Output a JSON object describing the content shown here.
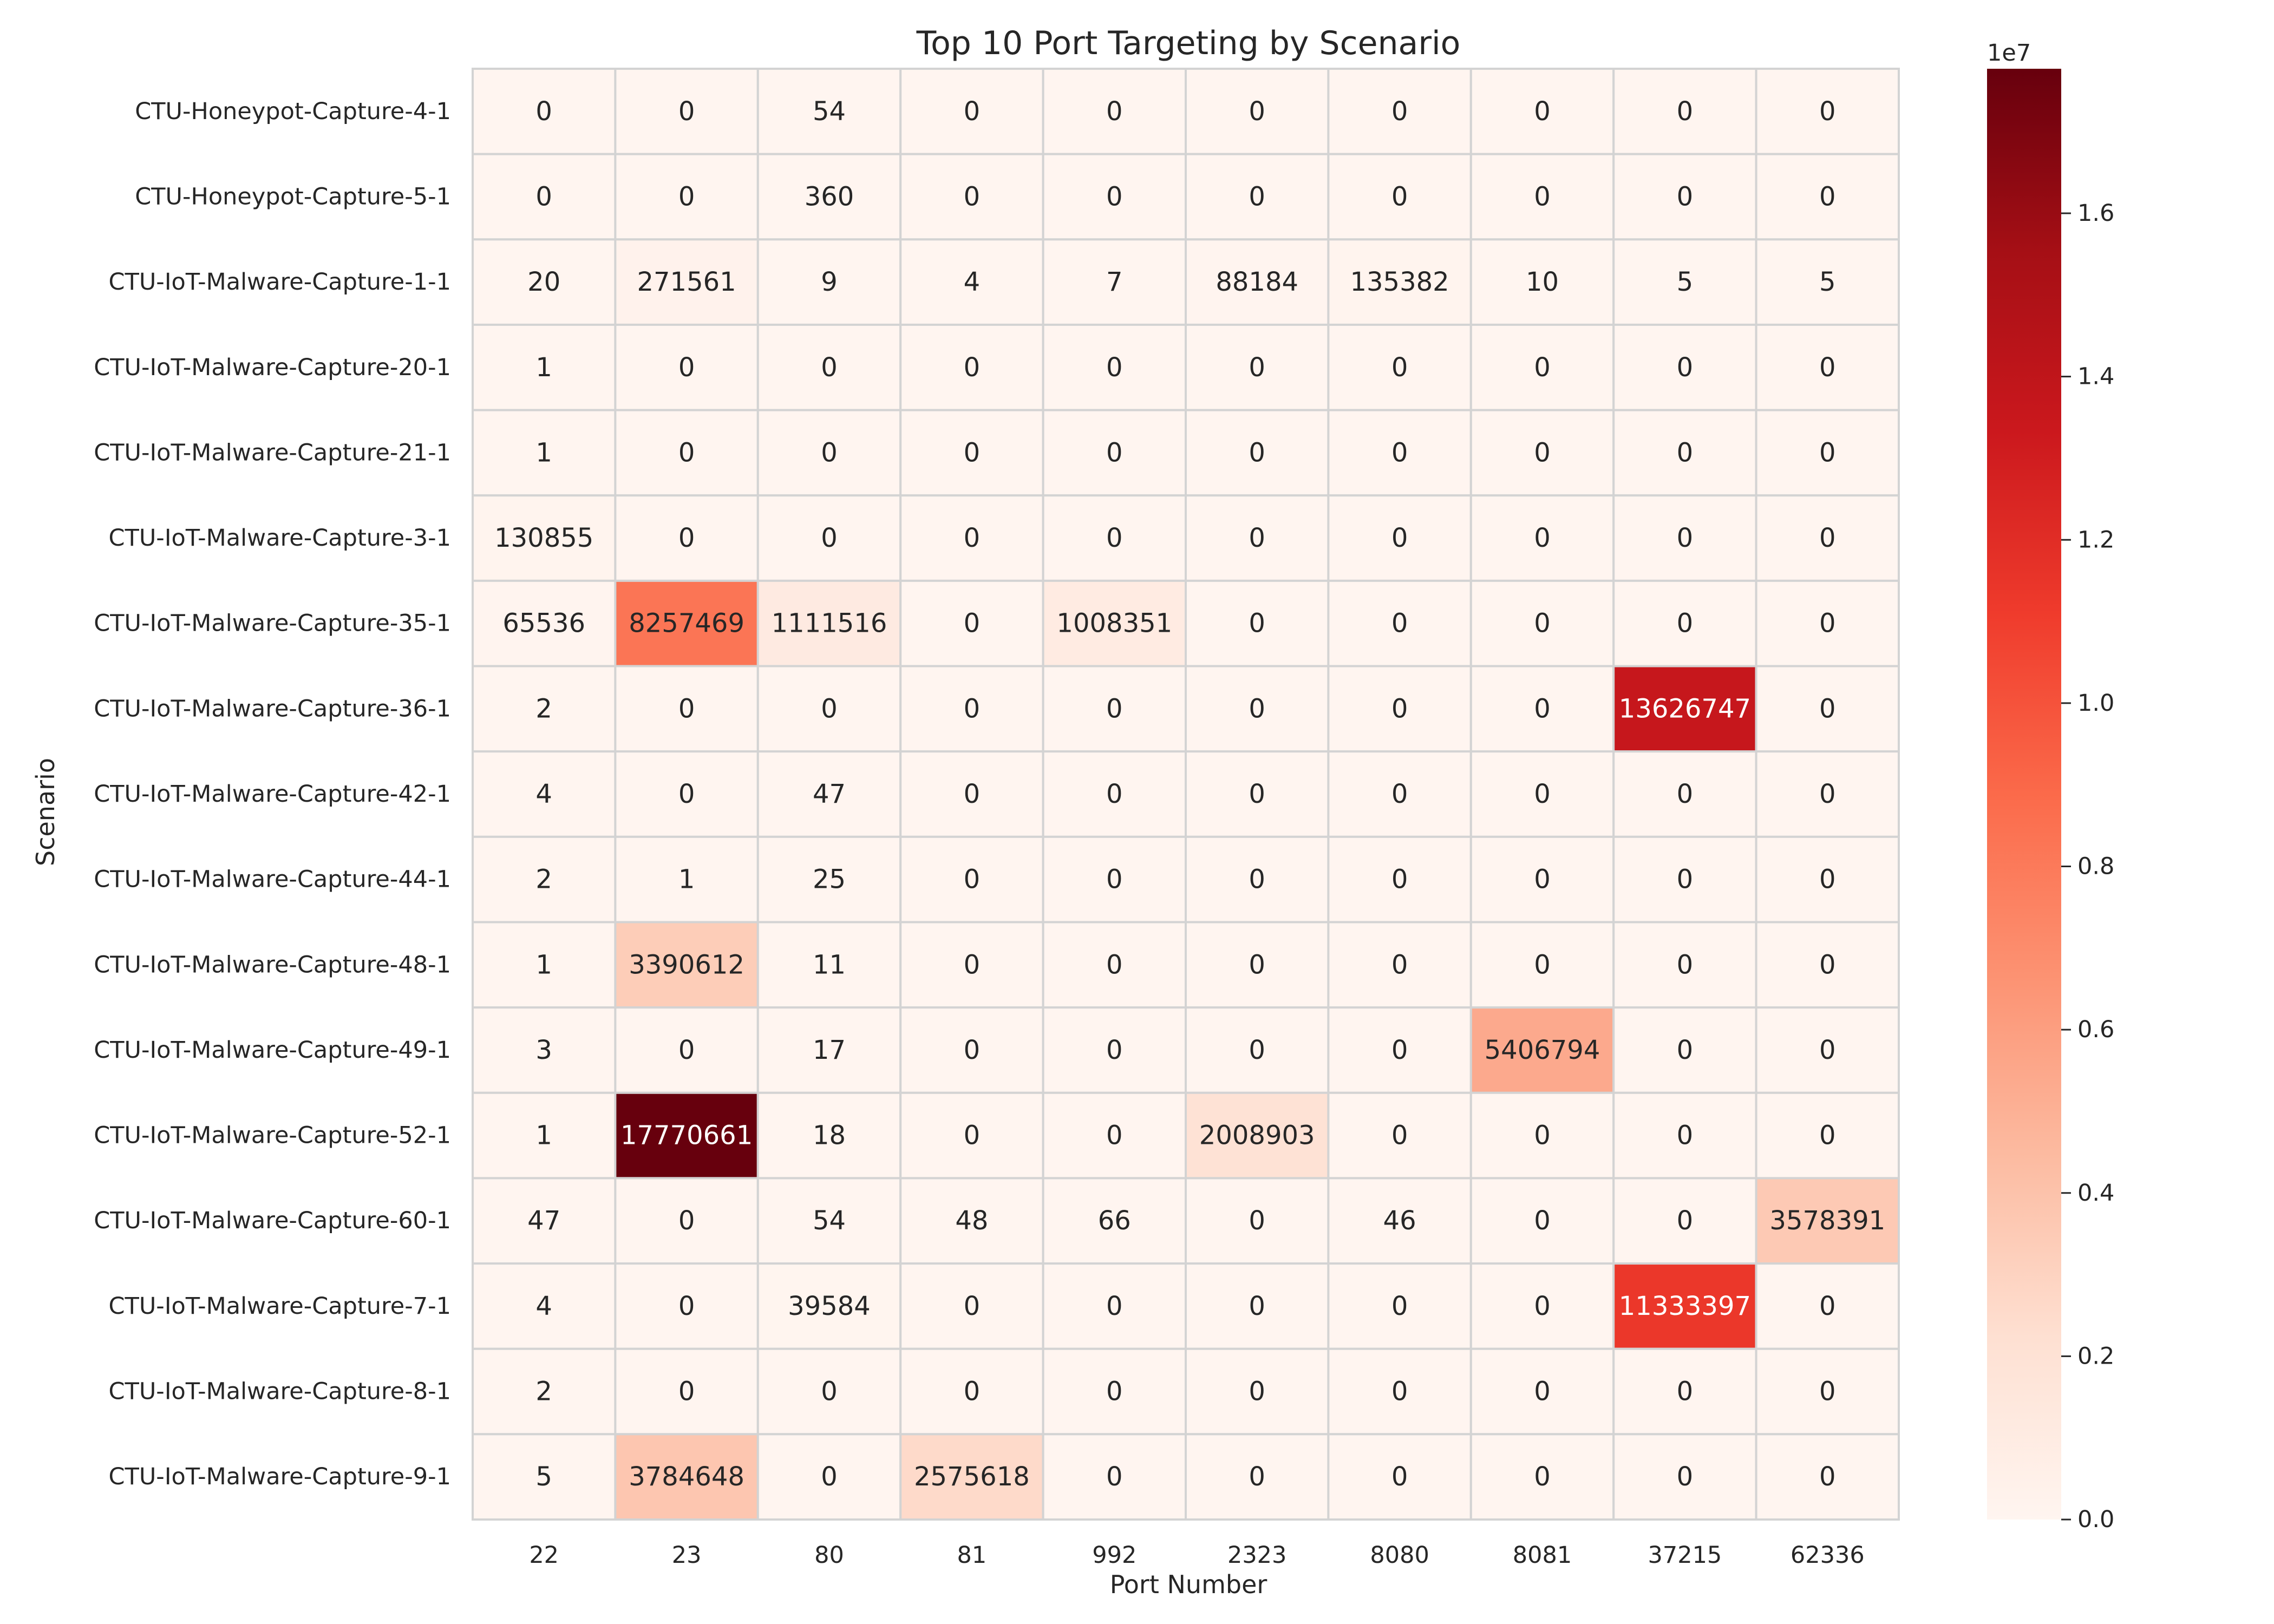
{
  "chart_data": {
    "type": "heatmap",
    "title": "Top 10 Port Targeting by Scenario",
    "xlabel": "Port Number",
    "ylabel": "Scenario",
    "x_categories": [
      "22",
      "23",
      "80",
      "81",
      "992",
      "2323",
      "8080",
      "8081",
      "37215",
      "62336"
    ],
    "y_categories": [
      "CTU-Honeypot-Capture-4-1",
      "CTU-Honeypot-Capture-5-1",
      "CTU-IoT-Malware-Capture-1-1",
      "CTU-IoT-Malware-Capture-20-1",
      "CTU-IoT-Malware-Capture-21-1",
      "CTU-IoT-Malware-Capture-3-1",
      "CTU-IoT-Malware-Capture-35-1",
      "CTU-IoT-Malware-Capture-36-1",
      "CTU-IoT-Malware-Capture-42-1",
      "CTU-IoT-Malware-Capture-44-1",
      "CTU-IoT-Malware-Capture-48-1",
      "CTU-IoT-Malware-Capture-49-1",
      "CTU-IoT-Malware-Capture-52-1",
      "CTU-IoT-Malware-Capture-60-1",
      "CTU-IoT-Malware-Capture-7-1",
      "CTU-IoT-Malware-Capture-8-1",
      "CTU-IoT-Malware-Capture-9-1"
    ],
    "values": [
      [
        0,
        0,
        54,
        0,
        0,
        0,
        0,
        0,
        0,
        0
      ],
      [
        0,
        0,
        360,
        0,
        0,
        0,
        0,
        0,
        0,
        0
      ],
      [
        20,
        271561,
        9,
        4,
        7,
        88184,
        135382,
        10,
        5,
        5
      ],
      [
        1,
        0,
        0,
        0,
        0,
        0,
        0,
        0,
        0,
        0
      ],
      [
        1,
        0,
        0,
        0,
        0,
        0,
        0,
        0,
        0,
        0
      ],
      [
        130855,
        0,
        0,
        0,
        0,
        0,
        0,
        0,
        0,
        0
      ],
      [
        65536,
        8257469,
        1111516,
        0,
        1008351,
        0,
        0,
        0,
        0,
        0
      ],
      [
        2,
        0,
        0,
        0,
        0,
        0,
        0,
        0,
        13626747,
        0
      ],
      [
        4,
        0,
        47,
        0,
        0,
        0,
        0,
        0,
        0,
        0
      ],
      [
        2,
        1,
        25,
        0,
        0,
        0,
        0,
        0,
        0,
        0
      ],
      [
        1,
        3390612,
        11,
        0,
        0,
        0,
        0,
        0,
        0,
        0
      ],
      [
        3,
        0,
        17,
        0,
        0,
        0,
        0,
        5406794,
        0,
        0
      ],
      [
        1,
        17770661,
        18,
        0,
        0,
        2008903,
        0,
        0,
        0,
        0
      ],
      [
        47,
        0,
        54,
        48,
        66,
        0,
        46,
        0,
        0,
        3578391
      ],
      [
        4,
        0,
        39584,
        0,
        0,
        0,
        0,
        0,
        11333397,
        0
      ],
      [
        2,
        0,
        0,
        0,
        0,
        0,
        0,
        0,
        0,
        0
      ],
      [
        5,
        3784648,
        0,
        2575618,
        0,
        0,
        0,
        0,
        0,
        0
      ]
    ],
    "colormap": "Reds",
    "value_range": [
      0,
      17770661
    ],
    "colorbar": {
      "ticks": [
        "0.0",
        "0.2",
        "0.4",
        "0.6",
        "0.8",
        "1.0",
        "1.2",
        "1.4",
        "1.6"
      ],
      "tick_values": [
        0,
        2000000,
        4000000,
        6000000,
        8000000,
        10000000,
        12000000,
        14000000,
        16000000
      ],
      "multiplier_label": "1e7"
    },
    "annotated": true,
    "cell_border_color": "#d3d3d3"
  }
}
